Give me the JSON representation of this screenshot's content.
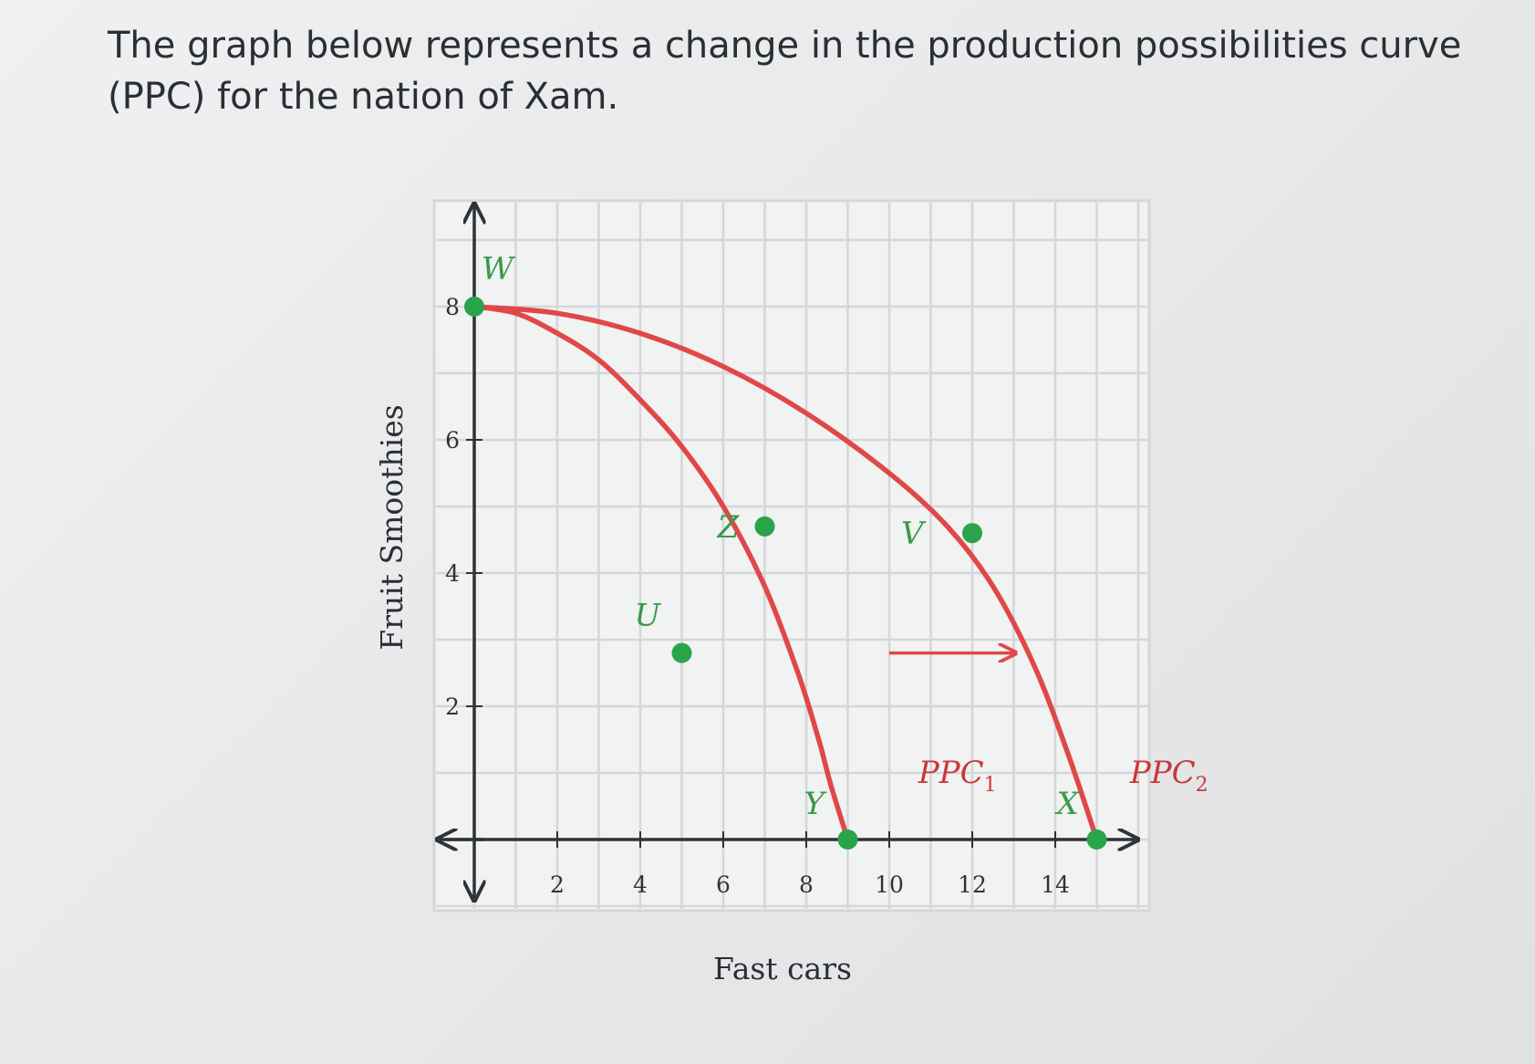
{
  "question": {
    "text": "The graph below represents a change in the production possibilities curve (PPC) for the nation of Xam."
  },
  "chart_data": {
    "type": "line",
    "xlabel": "Fast cars",
    "ylabel": "Fruit Smoothies",
    "xlim": [
      -1,
      14.5
    ],
    "ylim": [
      -1,
      8.5
    ],
    "x_ticks": [
      2,
      4,
      6,
      8,
      10,
      12,
      14
    ],
    "y_ticks": [
      2,
      4,
      6,
      8
    ],
    "grid": true,
    "colors": {
      "curve": "#e04847",
      "point": "#2aa44a",
      "point_label": "#3a9a4a",
      "curve_label": "#c8383a",
      "grid": "#d4d6d7",
      "axis": "#2f3236"
    },
    "series": [
      {
        "name": "PPC1",
        "label_main": "PPC",
        "label_sub": "1",
        "x": [
          0,
          1,
          2,
          3,
          4,
          5,
          6,
          7,
          7.8,
          8.3,
          8.6,
          9
        ],
        "y": [
          8,
          7.9,
          7.6,
          7.2,
          6.6,
          5.9,
          5.0,
          3.8,
          2.5,
          1.5,
          0.8,
          0
        ]
      },
      {
        "name": "PPC2",
        "label_main": "PPC",
        "label_sub": "2",
        "x": [
          0,
          2,
          4,
          6,
          8,
          10,
          11.4,
          12.5,
          13.5,
          14.3,
          15
        ],
        "y": [
          8,
          7.9,
          7.6,
          7.1,
          6.4,
          5.5,
          4.7,
          3.8,
          2.6,
          1.3,
          0
        ]
      }
    ],
    "points": [
      {
        "label": "W",
        "x": 0,
        "y": 8
      },
      {
        "label": "Z",
        "x": 7,
        "y": 4.7
      },
      {
        "label": "V",
        "x": 12,
        "y": 4.6
      },
      {
        "label": "U",
        "x": 5,
        "y": 2.8
      },
      {
        "label": "Y",
        "x": 9,
        "y": 0
      },
      {
        "label": "X",
        "x": 15,
        "y": 0
      }
    ],
    "annotations": [
      {
        "type": "arrow",
        "from": [
          10,
          2.8
        ],
        "to": [
          13,
          2.8
        ]
      }
    ]
  }
}
